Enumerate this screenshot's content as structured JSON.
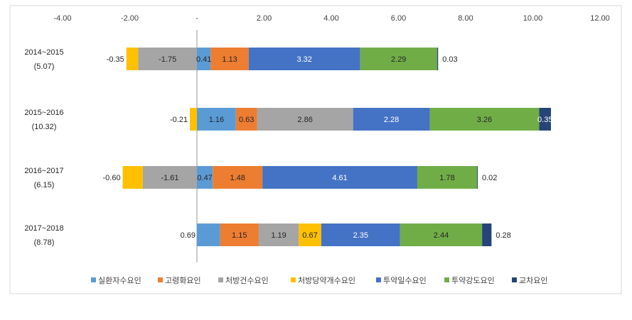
{
  "chart_data": {
    "type": "bar",
    "stacked": true,
    "orientation": "horizontal",
    "title": "",
    "xlabel": "",
    "ylabel": "",
    "xlim": [
      -4,
      12
    ],
    "x_ticks": [
      {
        "value": -4,
        "label": "-4.00"
      },
      {
        "value": -2,
        "label": "-2.00"
      },
      {
        "value": 0,
        "label": "-"
      },
      {
        "value": 2,
        "label": "2.00"
      },
      {
        "value": 4,
        "label": "4.00"
      },
      {
        "value": 6,
        "label": "6.00"
      },
      {
        "value": 8,
        "label": "8.00"
      },
      {
        "value": 10,
        "label": "10.00"
      },
      {
        "value": 12,
        "label": "12.00"
      }
    ],
    "grid": false,
    "legend_position": "bottom",
    "categories": [
      {
        "period": "2014~2015",
        "total": "(5.07)"
      },
      {
        "period": "2015~2016",
        "total": "(10.32)"
      },
      {
        "period": "2016~2017",
        "total": "(6.15)"
      },
      {
        "period": "2017~2018",
        "total": "(8.78)"
      }
    ],
    "series": [
      {
        "name": "실환자수요인",
        "color": "#5b9bd5",
        "values": [
          0.41,
          1.16,
          0.47,
          0.69
        ]
      },
      {
        "name": "고령화요인",
        "color": "#ed7d31",
        "values": [
          1.13,
          0.63,
          1.48,
          1.15
        ]
      },
      {
        "name": "처방건수요인",
        "color": "#a5a5a5",
        "values": [
          -1.75,
          2.86,
          -1.61,
          1.19
        ]
      },
      {
        "name": "처방당약개수요인",
        "color": "#ffc000",
        "values": [
          -0.35,
          -0.21,
          -0.6,
          0.67
        ]
      },
      {
        "name": "투약일수요인",
        "color": "#4472c4",
        "values": [
          3.32,
          2.28,
          4.61,
          2.35
        ]
      },
      {
        "name": "투약강도요인",
        "color": "#70ad47",
        "values": [
          2.29,
          3.26,
          1.78,
          2.44
        ]
      },
      {
        "name": "교차요인",
        "color": "#264478",
        "values": [
          0.03,
          0.35,
          0.02,
          0.28
        ]
      }
    ],
    "data_labels": [
      [
        "0.41",
        "1.13",
        "-1.75",
        "-0.35",
        "3.32",
        "2.29",
        "0.03"
      ],
      [
        "1.16",
        "0.63",
        "2.86",
        "-0.21",
        "2.28",
        "3.26",
        "0.35"
      ],
      [
        "0.47",
        "1.48",
        "-1.61",
        "-0.60",
        "4.61",
        "1.78",
        "0.02"
      ],
      [
        "0.69",
        "1.15",
        "1.19",
        "0.67",
        "2.35",
        "2.44",
        "0.28"
      ]
    ],
    "stack_order": [
      [
        3,
        2,
        0,
        1,
        4,
        5,
        6
      ],
      [
        3,
        0,
        1,
        2,
        4,
        5,
        6
      ],
      [
        3,
        2,
        0,
        1,
        4,
        5,
        6
      ],
      [
        0,
        1,
        2,
        3,
        4,
        5,
        6
      ]
    ]
  }
}
